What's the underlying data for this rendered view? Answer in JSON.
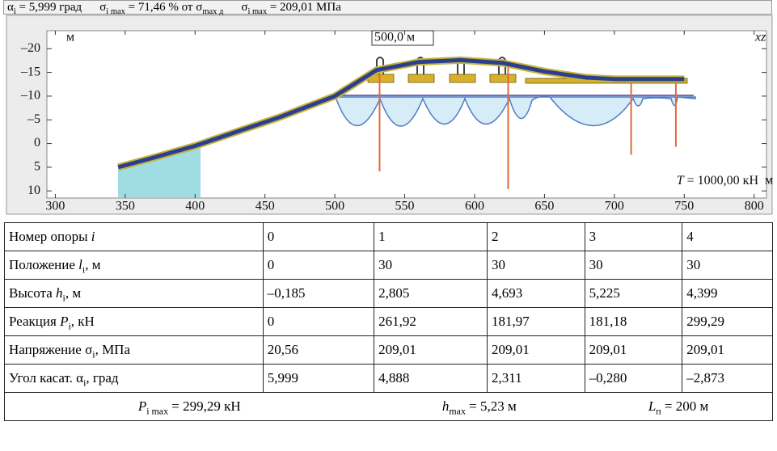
{
  "header": {
    "items": [
      [
        {
          "t": "α"
        },
        {
          "sub": "i"
        },
        {
          "t": " = 5,999 град"
        }
      ],
      [
        {
          "t": "σ"
        },
        {
          "sub": "i max"
        },
        {
          "t": " = 71,46 % от σ"
        },
        {
          "sub": "max д"
        }
      ],
      [
        {
          "t": "σ"
        },
        {
          "sub": "i max"
        },
        {
          "t": " = 209,01 МПа"
        }
      ]
    ]
  },
  "chart_data": {
    "type": "line",
    "x": [
      345,
      370,
      400,
      430,
      460,
      500,
      530,
      560,
      590,
      620,
      650,
      680,
      700,
      720,
      750
    ],
    "series": [
      {
        "color": "#2a3f8f",
        "values": [
          5,
          3,
          0.5,
          -2.5,
          -5.5,
          -10,
          -15.5,
          -17.2,
          -17.6,
          -17,
          -15.2,
          -13.9,
          -13.6,
          -13.6,
          -13.6
        ]
      }
    ],
    "supports": {
      "x": [
        532,
        624,
        712,
        744
      ],
      "bottom": [
        5.9,
        9.6,
        2.4,
        0.7
      ],
      "color": "#e06a3c"
    },
    "xlim": [
      272,
      810
    ],
    "ylim": [
      -23.8,
      11.5
    ],
    "invert_y": true,
    "xticks": [
      300,
      350,
      400,
      450,
      500,
      550,
      600,
      650,
      700,
      750,
      800
    ],
    "yticks": [
      {
        "value": -20,
        "label": "–20"
      },
      {
        "value": -15,
        "label": "–15"
      },
      {
        "value": -10,
        "label": "–10"
      },
      {
        "value": -5,
        "label": "–5"
      },
      0,
      5,
      10
    ],
    "y_unit": "м",
    "x_unit": "м",
    "scale_label": "500,0 м",
    "plane_label": "xz",
    "tension_label": [
      {
        "i": "T"
      },
      {
        "t": " = 1000,00 кН"
      }
    ]
  },
  "table": {
    "rows": [
      [
        [
          {
            "t": "Номер опоры "
          },
          {
            "i": "i"
          }
        ],
        "0",
        "1",
        "2",
        "3",
        "4"
      ],
      [
        [
          {
            "t": "Положение "
          },
          {
            "i": "l"
          },
          {
            "sub": "i"
          },
          {
            "t": ", м"
          }
        ],
        "0",
        "30",
        "30",
        "30",
        "30"
      ],
      [
        [
          {
            "t": "Высота "
          },
          {
            "i": "h"
          },
          {
            "sub": "i"
          },
          {
            "t": ", м"
          }
        ],
        "–0,185",
        "2,805",
        "4,693",
        "5,225",
        "4,399"
      ],
      [
        [
          {
            "t": "Реакция "
          },
          {
            "i": "P"
          },
          {
            "sub": "i"
          },
          {
            "t": ", кН"
          }
        ],
        "0",
        "261,92",
        "181,97",
        "181,18",
        "299,29"
      ],
      [
        [
          {
            "t": "Напряжение σ"
          },
          {
            "sub": "i"
          },
          {
            "t": ", МПа"
          }
        ],
        "20,56",
        "209,01",
        "209,01",
        "209,01",
        "209,01"
      ],
      [
        [
          {
            "t": "Угол касат. α"
          },
          {
            "sub": "i"
          },
          {
            "t": ", град"
          }
        ],
        "5,999",
        "4,888",
        "2,311",
        "–0,280",
        "–2,873"
      ]
    ],
    "footer": [
      [
        {
          "i": "P"
        },
        {
          "sub": "i max"
        },
        {
          "t": " = 299,29 кН"
        }
      ],
      [
        {
          "i": "h"
        },
        {
          "sub": "max"
        },
        {
          "t": " = 5,23 м"
        }
      ],
      [
        {
          "i": "L"
        },
        {
          "sub": "п"
        },
        {
          "t": " = 200 м"
        }
      ]
    ]
  }
}
